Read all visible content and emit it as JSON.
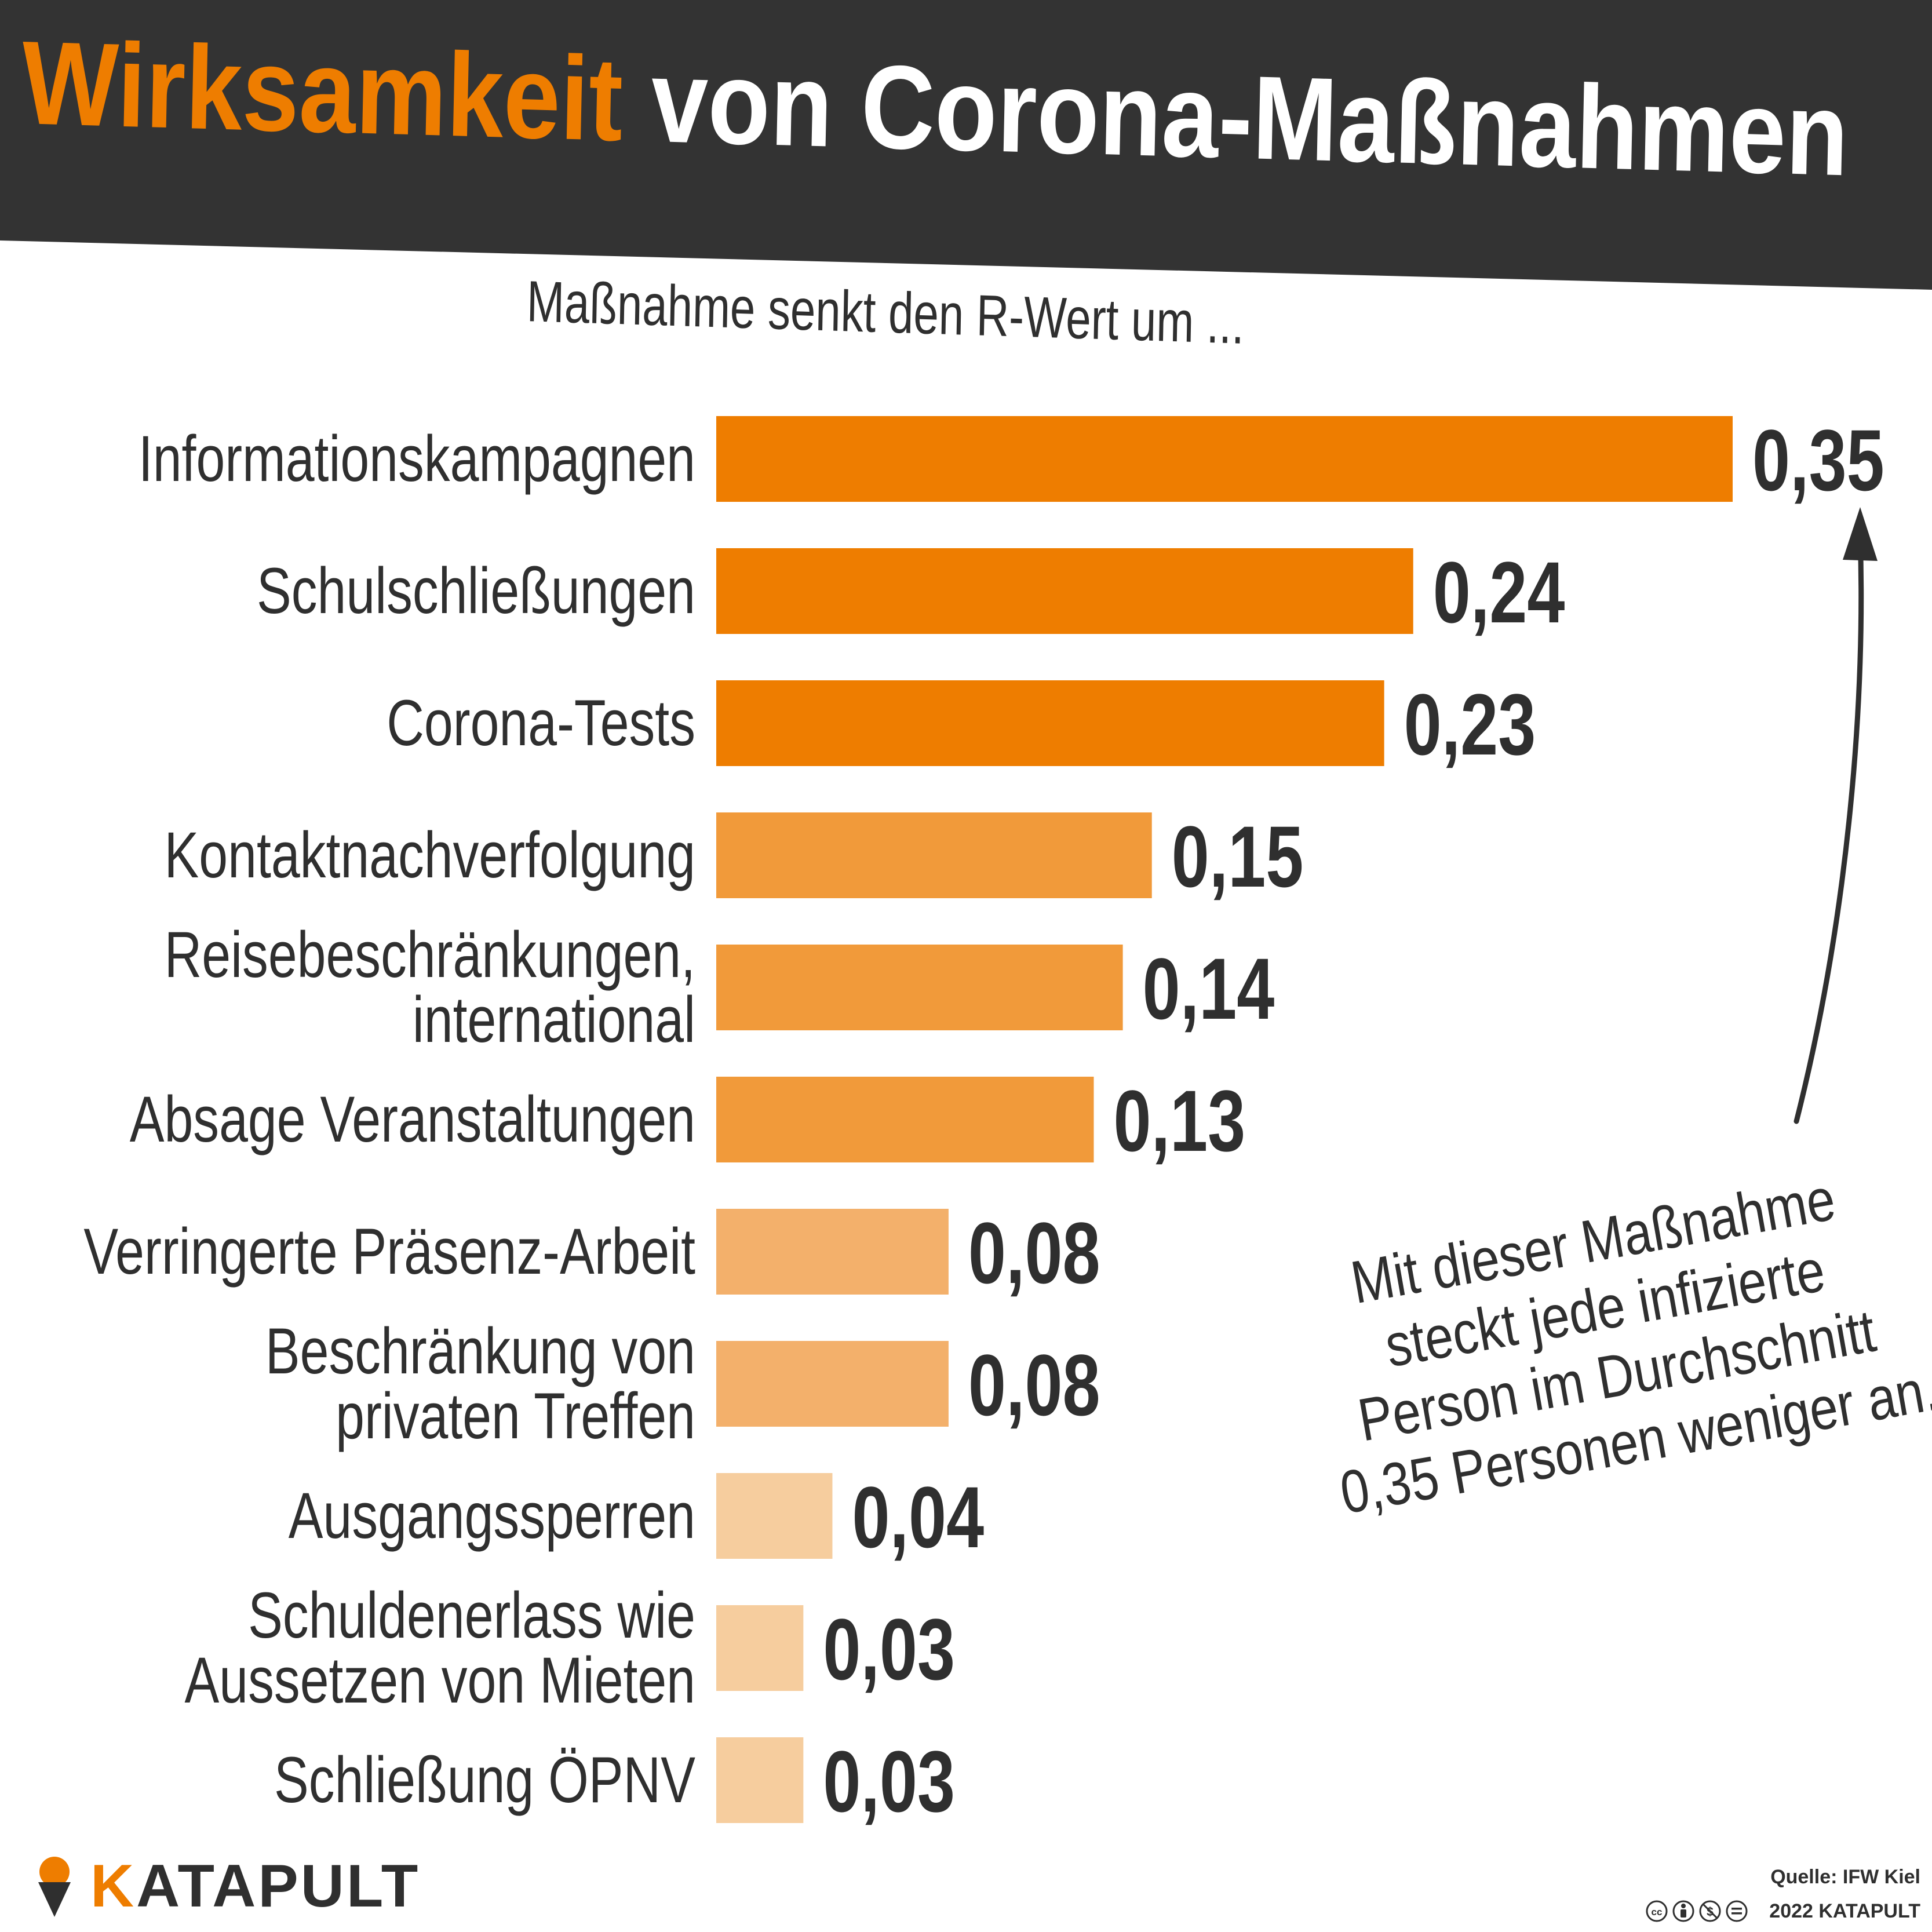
{
  "header": {
    "title_accent": "Wirksamkeit",
    "title_rest": "von Corona-Maßnahmen",
    "background_color": "#333333",
    "accent_color": "#ee7d00"
  },
  "chart_data": {
    "type": "bar",
    "orientation": "horizontal",
    "subtitle": "Maßnahme senkt den R-Wert um ...",
    "categories": [
      "Informationskampagnen",
      "Schulschließungen",
      "Corona-Tests",
      "Kontaktnachverfolgung",
      "Reisebeschränkungen,\ninternational",
      "Absage Veranstaltungen",
      "Verringerte Präsenz-Arbeit",
      "Beschränkung von\nprivaten Treffen",
      "Ausgangssperren",
      "Schuldenerlass wie\nAussetzen von Mieten",
      "Schließung ÖPNV"
    ],
    "values": [
      0.35,
      0.24,
      0.23,
      0.15,
      0.14,
      0.13,
      0.08,
      0.08,
      0.04,
      0.03,
      0.03
    ],
    "value_labels": [
      "0,35",
      "0,24",
      "0,23",
      "0,15",
      "0,14",
      "0,13",
      "0,08",
      "0,08",
      "0,04",
      "0,03",
      "0,03"
    ],
    "bar_colors": [
      "#ee7d00",
      "#ee7d00",
      "#ee7d00",
      "#f19a3a",
      "#f19a3a",
      "#f19a3a",
      "#f3b06b",
      "#f3b06b",
      "#f6cd9e",
      "#f6cd9e",
      "#f6cd9e"
    ],
    "xlim": [
      0,
      0.35
    ],
    "grid": false,
    "legend": "none"
  },
  "annotation": {
    "lines": [
      "Mit dieser Maßnahme",
      "steckt jede infizierte",
      "Person im Durchschnitt",
      "0,35 Personen weniger an."
    ],
    "arrow_target": "0,35"
  },
  "footer": {
    "logo_accent": "K",
    "logo_rest": "ATAPULT",
    "logo_icon": "catapult-scoop-icon",
    "source": "Quelle: IFW Kiel",
    "license_icons": [
      "cc-icon",
      "by-icon",
      "nc-icon",
      "nd-icon"
    ],
    "credit": "2022 KATAPULT"
  }
}
